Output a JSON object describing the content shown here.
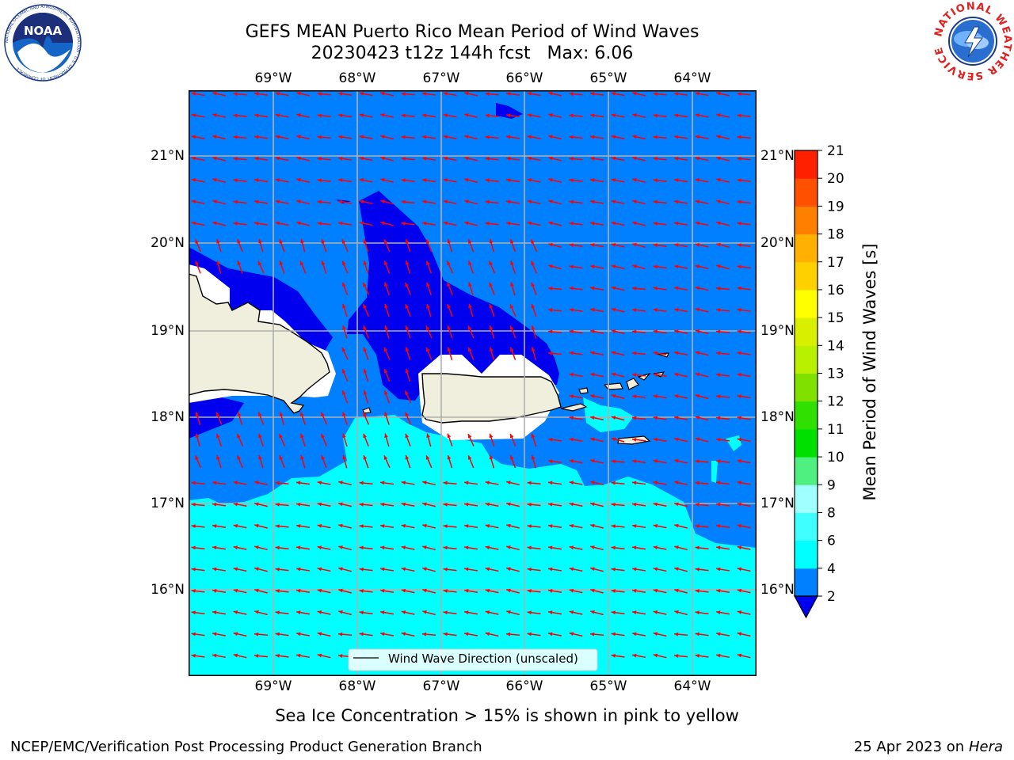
{
  "title": {
    "line1": "GEFS MEAN Puerto Rico Mean Period of Wind Waves",
    "line2": "20230423 t12z 144h fcst   Max: 6.06"
  },
  "logos": {
    "left": {
      "text": "NOAA",
      "ring": "NATIONAL OCEANIC AND ATMOSPHERIC ADMINISTRATION · U.S. DEPARTMENT OF COMMERCE"
    },
    "right": {
      "ring": "NATIONAL WEATHER SERVICE"
    }
  },
  "map": {
    "lon_labels": [
      "69°W",
      "68°W",
      "67°W",
      "66°W",
      "65°W",
      "64°W"
    ],
    "lat_labels": [
      "21°N",
      "20°N",
      "19°N",
      "18°N",
      "17°N",
      "16°N"
    ],
    "legend_label": "Wind Wave Direction (unscaled)",
    "colors": {
      "ocean_2_4": "#0080ff",
      "ocean_lt2": "#0000ee",
      "ocean_4_6": "#00ffff",
      "land": "#f0eedc",
      "arrow": "#ff0000"
    }
  },
  "colorbar": {
    "label": "Mean Period of Wind Waves [s]",
    "ticks": [
      "2",
      "4",
      "6",
      "8",
      "9",
      "10",
      "11",
      "12",
      "13",
      "14",
      "15",
      "16",
      "17",
      "18",
      "19",
      "20",
      "21"
    ],
    "colors": [
      "#0080ff",
      "#00ffff",
      "#40ffff",
      "#a0ffff",
      "#50f080",
      "#00e000",
      "#30e000",
      "#80e000",
      "#b8f000",
      "#d8f000",
      "#ffff00",
      "#ffd000",
      "#ffb000",
      "#ff8000",
      "#ff5000",
      "#ff2000"
    ],
    "extend_color": "#0000ee"
  },
  "caption": "Sea Ice Concentration > 15% is shown in pink to yellow",
  "footer": {
    "left": "NCEP/EMC/Verification Post Processing Product Generation Branch",
    "right_date": "25 Apr 2023 on ",
    "right_host": "Hera"
  }
}
